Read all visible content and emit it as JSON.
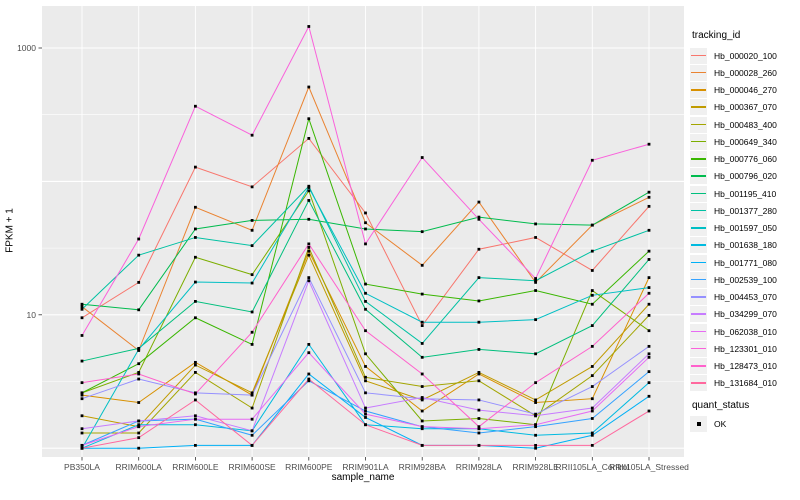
{
  "chart": {
    "title": "",
    "xlabel": "sample_name",
    "ylabel": "FPKM + 1",
    "chart_data": {
      "type": "line",
      "y_scale": "log10",
      "ylim": [
        0.9,
        2000
      ],
      "grid": "major+minor white on gray panel",
      "legend_position": "right",
      "point_marker": "small black square (quant_status OK)",
      "categories": [
        "PB350LA",
        "RRIM600LA",
        "RRIM600LE",
        "RRIM600SE",
        "RRIM600PE",
        "RRIM901LA",
        "RRIM928BA",
        "RRIM928LA",
        "RRIM928LE",
        "RRII105LA_Control",
        "RRII105LA_Stressed"
      ],
      "y_ticks": [
        {
          "label": "1000",
          "value": 1000
        },
        {
          "label": "10",
          "value": 10
        }
      ],
      "y_major_values": [
        1,
        10,
        100,
        1000
      ],
      "y_minor_values": [
        3.1623,
        31.623,
        316.23
      ],
      "series": [
        {
          "tracking_id": "Hb_000020_100",
          "color": "#F8766D",
          "values": [
            9.5,
            17.5,
            128,
            91,
            210,
            58,
            8.3,
            31,
            38,
            21.5,
            65
          ]
        },
        {
          "tracking_id": "Hb_000028_260",
          "color": "#EA8331",
          "values": [
            11.5,
            5.4,
            64,
            43,
            510,
            49,
            23.5,
            70,
            17.5,
            47,
            76
          ]
        },
        {
          "tracking_id": "Hb_000046_270",
          "color": "#D89000",
          "values": [
            2.5,
            2.2,
            4.4,
            2.5,
            30,
            4.1,
            1.9,
            3.6,
            2.2,
            2.35,
            19
          ]
        },
        {
          "tracking_id": "Hb_000367_070",
          "color": "#C09B00",
          "values": [
            1.75,
            1.45,
            4.2,
            2.6,
            28,
            3.2,
            2.3,
            3.7,
            2.3,
            4.1,
            12
          ]
        },
        {
          "tracking_id": "Hb_000483_400",
          "color": "#A3A500",
          "values": [
            1.3,
            1.3,
            3.7,
            2.0,
            32,
            3.4,
            2.9,
            3.2,
            1.75,
            3.5,
            9.9
          ]
        },
        {
          "tracking_id": "Hb_000649_340",
          "color": "#7CAE00",
          "values": [
            2.6,
            3.7,
            27,
            20,
            85,
            5.1,
            1.6,
            1.67,
            1.5,
            15.2,
            7.6
          ]
        },
        {
          "tracking_id": "Hb_000776_060",
          "color": "#39B600",
          "values": [
            2.6,
            4.3,
            9.5,
            6.0,
            295,
            17,
            14.3,
            12.7,
            15.2,
            12,
            30
          ]
        },
        {
          "tracking_id": "Hb_000796_020",
          "color": "#00BB4E",
          "values": [
            12,
            10.9,
            44,
            51,
            52,
            44,
            42,
            54,
            48,
            47,
            83
          ]
        },
        {
          "tracking_id": "Hb_001195_410",
          "color": "#00BF7D",
          "values": [
            4.5,
            5.6,
            12.6,
            10.5,
            72,
            11,
            4.8,
            5.5,
            5.1,
            8.3,
            26
          ]
        },
        {
          "tracking_id": "Hb_001377_280",
          "color": "#00C1A3",
          "values": [
            11,
            28,
            38,
            33,
            92,
            12.6,
            6.1,
            19,
            18,
            30,
            43
          ]
        },
        {
          "tracking_id": "Hb_001597_050",
          "color": "#00BFC4",
          "values": [
            1.0,
            5.5,
            17.6,
            17.3,
            90,
            14.5,
            8.8,
            8.8,
            9.2,
            14,
            16
          ]
        },
        {
          "tracking_id": "Hb_001638_180",
          "color": "#00BAE0",
          "values": [
            1.0,
            1.5,
            1.5,
            1.35,
            6.0,
            1.5,
            1.4,
            1.4,
            1.25,
            1.3,
            3.1
          ]
        },
        {
          "tracking_id": "Hb_001771_080",
          "color": "#00B0F6",
          "values": [
            1.0,
            1.0,
            1.05,
            1.05,
            3.6,
            1.7,
            1.05,
            1.05,
            1.0,
            1.25,
            2.45
          ]
        },
        {
          "tracking_id": "Hb_002539_100",
          "color": "#35A2FF",
          "values": [
            1.05,
            1.6,
            1.65,
            1.25,
            3.2,
            1.9,
            1.45,
            1.3,
            1.45,
            1.67,
            3.75
          ]
        },
        {
          "tracking_id": "Hb_004453_070",
          "color": "#9590FF",
          "values": [
            2.35,
            3.3,
            2.6,
            2.5,
            19,
            2.6,
            2.35,
            2.3,
            1.8,
            2.9,
            5.8
          ]
        },
        {
          "tracking_id": "Hb_034299_070",
          "color": "#C77CFF",
          "values": [
            1.4,
            1.6,
            1.75,
            1.35,
            18,
            2.0,
            2.4,
            1.93,
            1.75,
            2.0,
            5.1
          ]
        },
        {
          "tracking_id": "Hb_062038_010",
          "color": "#E76BF3",
          "values": [
            1.05,
            1.45,
            1.65,
            1.65,
            5.2,
            1.8,
            1.45,
            1.4,
            1.5,
            1.9,
            4.8
          ]
        },
        {
          "tracking_id": "Hb_123301_010",
          "color": "#FA62DB",
          "values": [
            7.0,
            37,
            366,
            222,
            1450,
            34,
            151,
            52,
            18.7,
            144,
            190
          ]
        },
        {
          "tracking_id": "Hb_128473_010",
          "color": "#FF61CC",
          "values": [
            3.1,
            3.6,
            2.55,
            7.4,
            34,
            7.6,
            3.6,
            1.45,
            3.1,
            5.8,
            14.5
          ]
        },
        {
          "tracking_id": "Hb_131684_010",
          "color": "#FF689E",
          "values": [
            1.0,
            1.2,
            2.3,
            1.05,
            3.3,
            1.5,
            1.05,
            1.05,
            1.05,
            1.05,
            1.9
          ]
        }
      ]
    }
  },
  "legend": {
    "title": "tracking_id"
  },
  "legend2": {
    "title": "quant_status",
    "items": [
      {
        "label": "OK"
      }
    ]
  },
  "colors": {
    "panel_bg": "#EBEBEB",
    "grid": "#FFFFFF",
    "tick_text": "#4D4D4D",
    "point": "#000000"
  }
}
